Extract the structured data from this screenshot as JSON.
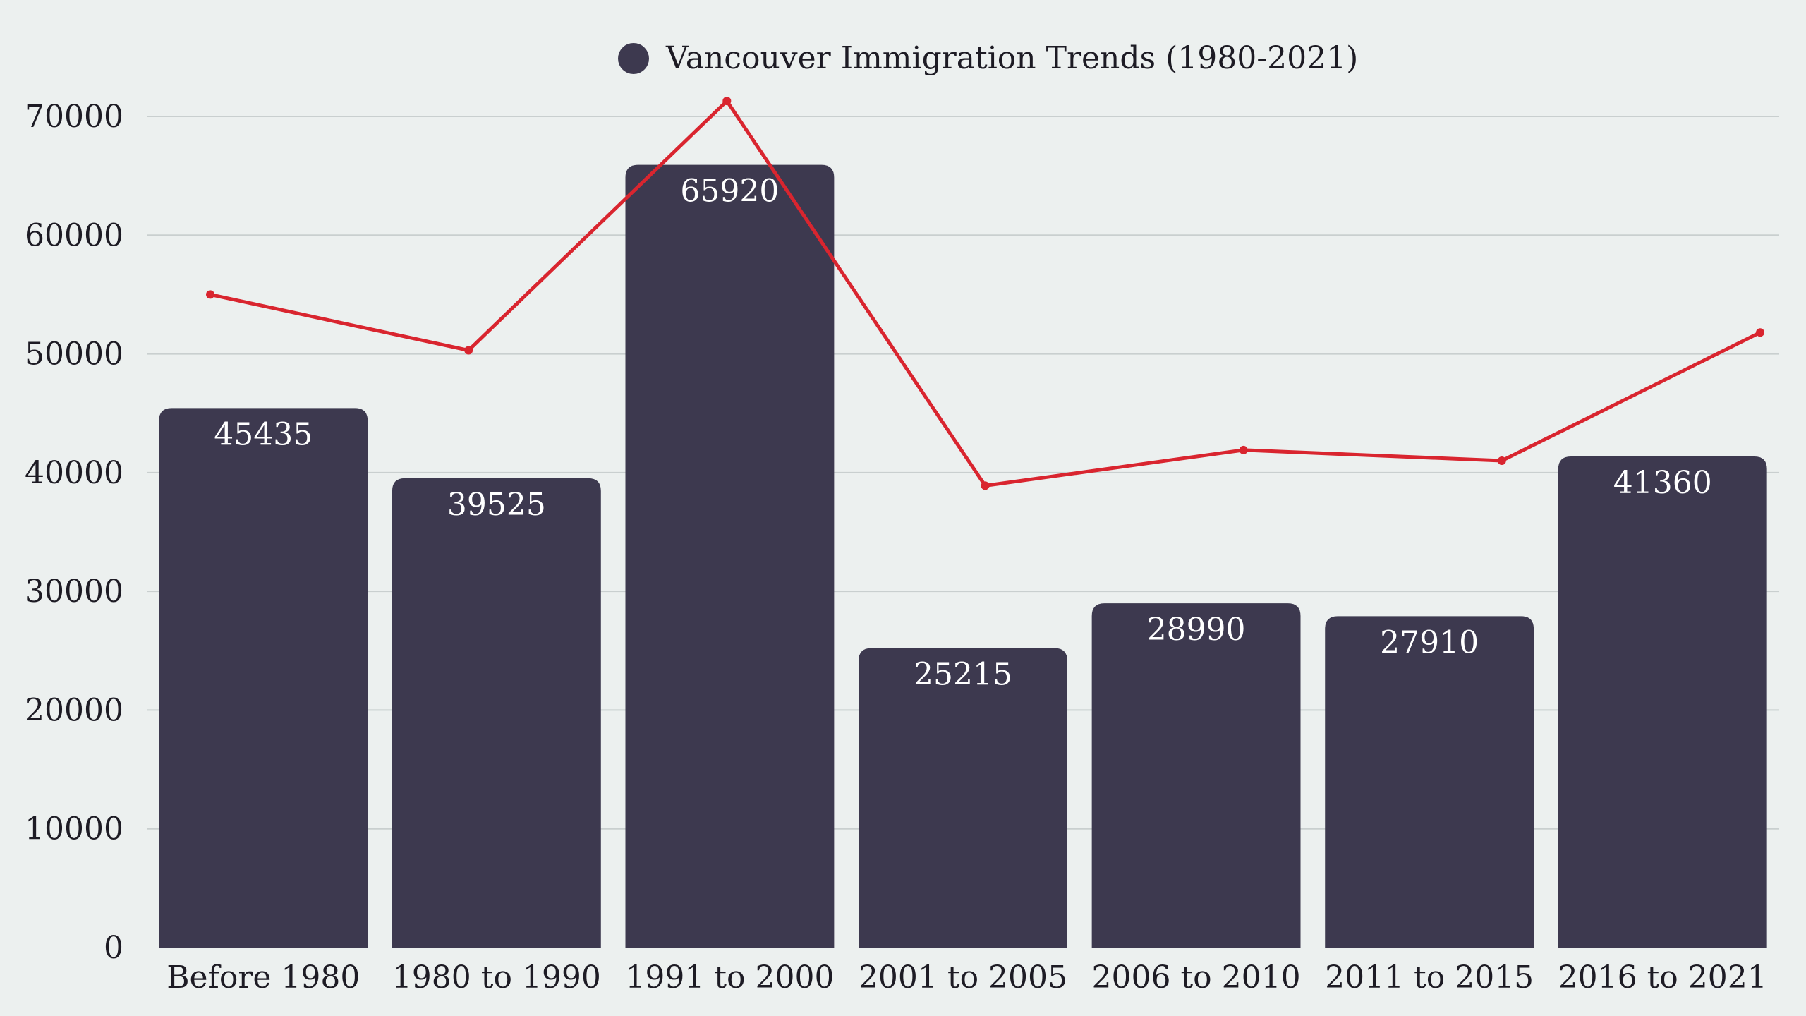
{
  "chart_data": {
    "type": "bar",
    "categories": [
      "Before 1980",
      "1980 to 1990",
      "1991 to 2000",
      "2001 to 2005",
      "2006 to 2010",
      "2011 to 2015",
      "2016 to 2021"
    ],
    "series": [
      {
        "name": "Vancouver Immigration Trends (1980-2021)",
        "type": "bar",
        "color": "#3d394f",
        "values": [
          45435,
          39525,
          65920,
          25215,
          28990,
          27910,
          41360
        ]
      },
      {
        "type": "line",
        "color": "#d9252f",
        "values": [
          55000,
          50300,
          71300,
          38900,
          41900,
          41000,
          51800
        ]
      }
    ],
    "ylim": [
      0,
      70000
    ],
    "yticks": [
      0,
      10000,
      20000,
      30000,
      40000,
      50000,
      60000,
      70000
    ],
    "grid": true,
    "legend": "top-center",
    "data_labels": true
  }
}
